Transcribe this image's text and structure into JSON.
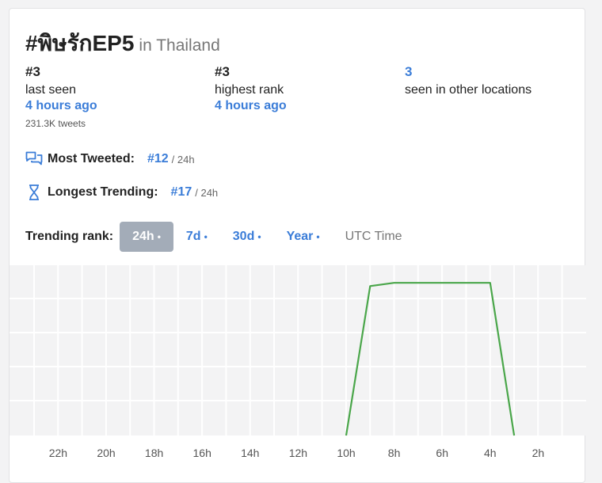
{
  "header": {
    "hashtag": "#พิษรักEP5",
    "location": "in Thailand"
  },
  "stats": {
    "last_seen": {
      "rank": "#3",
      "label": "last seen",
      "time": "4 hours ago",
      "tweets": "231.3K tweets"
    },
    "highest": {
      "rank": "#3",
      "label": "highest rank",
      "time": "4 hours ago"
    },
    "other": {
      "count": "3",
      "label": "seen in other locations"
    }
  },
  "metrics": {
    "most_tweeted": {
      "icon": "speech-bubbles-icon",
      "label": "Most Tweeted:",
      "value": "#12",
      "suffix": "/ 24h"
    },
    "longest": {
      "icon": "hourglass-icon",
      "label": "Longest Trending:",
      "value": "#17",
      "suffix": "/ 24h"
    }
  },
  "ranges": {
    "label": "Trending rank:",
    "buttons": [
      {
        "label": "24h",
        "dot": "•",
        "active": true
      },
      {
        "label": "7d",
        "dot": "•"
      },
      {
        "label": "30d",
        "dot": "•"
      },
      {
        "label": "Year",
        "dot": "•"
      }
    ],
    "utc": "UTC Time"
  },
  "colors": {
    "accent": "#3b7dd8",
    "line": "#4aa64a",
    "active_button": "#a3acb8"
  },
  "chart_data": {
    "type": "line",
    "x_ticks": [
      "22h",
      "20h",
      "18h",
      "16h",
      "14h",
      "12h",
      "10h",
      "8h",
      "6h",
      "4h",
      "2h"
    ],
    "series": [
      {
        "hours_ago": [
          10,
          9,
          8,
          7,
          6,
          5,
          4,
          3
        ],
        "rank": [
          50,
          4,
          3,
          3,
          3,
          3,
          3,
          50
        ]
      }
    ],
    "y_range": [
      1,
      50
    ],
    "grid": true
  }
}
